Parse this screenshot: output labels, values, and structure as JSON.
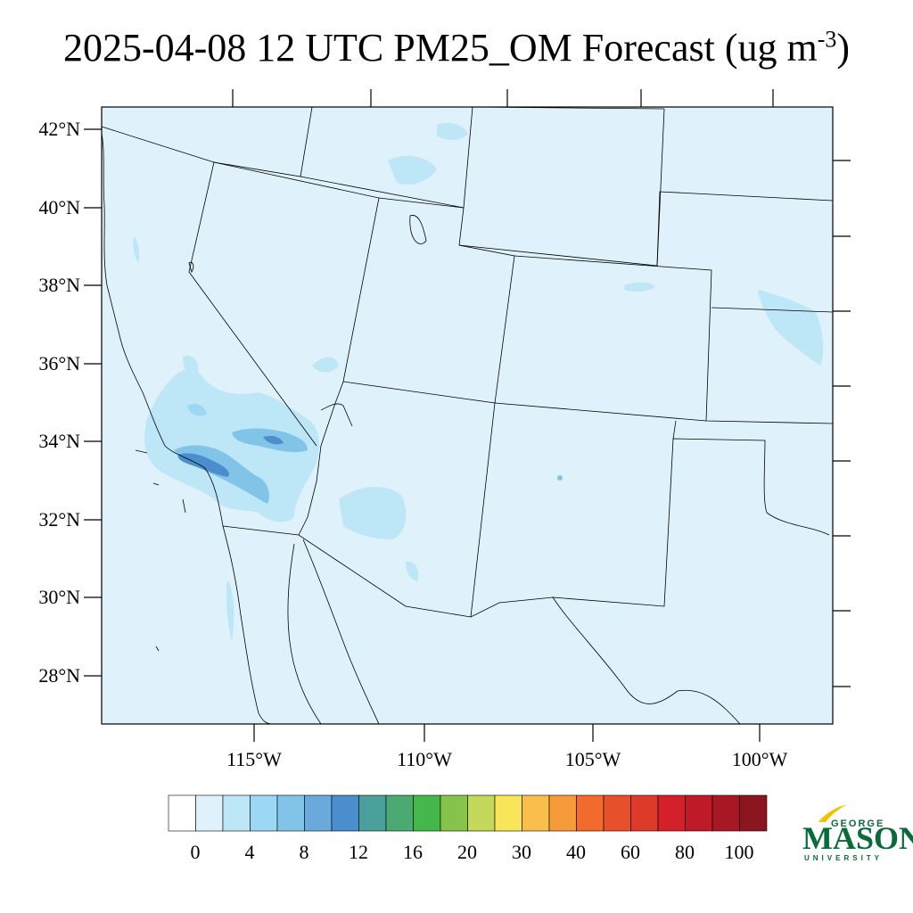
{
  "title": {
    "main": "2025-04-08 12 UTC PM25_OM Forecast (ug m",
    "sup": "-3",
    "close": ")"
  },
  "map": {
    "lat_labels": [
      "42°N",
      "40°N",
      "38°N",
      "36°N",
      "34°N",
      "32°N",
      "30°N",
      "28°N"
    ],
    "lon_labels": [
      "115°W",
      "110°W",
      "105°W",
      "100°W"
    ],
    "background_color": "#dff2fb"
  },
  "colorbar": {
    "labels": [
      "0",
      "4",
      "8",
      "12",
      "16",
      "20",
      "30",
      "40",
      "60",
      "80",
      "100"
    ],
    "colors": [
      "#ffffff",
      "#dff2fb",
      "#bde6f7",
      "#9cd8f3",
      "#82c3e8",
      "#69a9dc",
      "#4b8ecd",
      "#4ba09c",
      "#4aaa72",
      "#45b84c",
      "#86c34a",
      "#c4d95b",
      "#f8e55a",
      "#f8bf4c",
      "#f69a3a",
      "#f26a2c",
      "#e8502c",
      "#de3a2a",
      "#d3202b",
      "#bf1a28",
      "#a81824",
      "#8c1620"
    ]
  },
  "logo": {
    "line1": "GEORGE",
    "line2": "MASON",
    "line3": "UNIVERSITY",
    "color": "#0b6a3a",
    "accent": "#f2c200"
  }
}
